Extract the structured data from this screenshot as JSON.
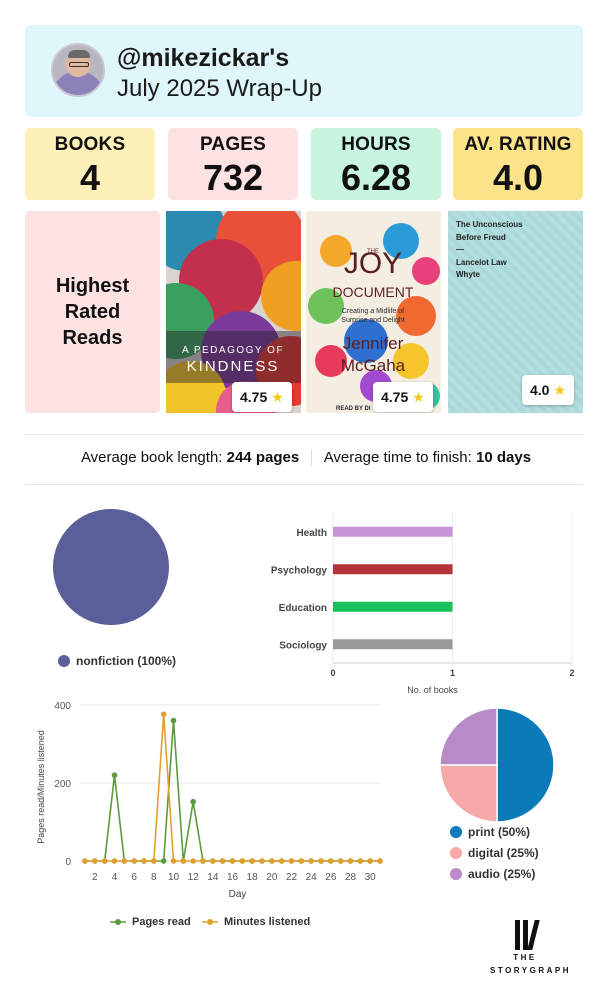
{
  "header": {
    "username": "@mikezickar's",
    "subtitle": "July 2025 Wrap-Up"
  },
  "stats": [
    {
      "label": "BOOKS",
      "value": "4",
      "color": "#fdf0b8"
    },
    {
      "label": "PAGES",
      "value": "732",
      "color": "#fde2e2"
    },
    {
      "label": "HOURS",
      "value": "6.28",
      "color": "#c8f5df"
    },
    {
      "label": "AV. RATING",
      "value": "4.0",
      "color": "#fce38a"
    }
  ],
  "highest_rated": {
    "label": "Highest Rated Reads",
    "books": [
      {
        "cover_text_line1": "A PEDAGOGY OF",
        "cover_text_line2": "KINDNESS",
        "rating": "4.75"
      },
      {
        "cover_text_line1": "THE",
        "cover_title": "JOY",
        "cover_title2": "DOCUMENT",
        "cover_tag1": "Creating a Midlife of",
        "cover_tag2": "Surprise and Delight",
        "cover_author1": "Jennifer",
        "cover_author2": "McGaha",
        "cover_footer": "READ BY DI",
        "rating": "4.75"
      },
      {
        "cover_lines": [
          "The Unconscious",
          "Before Freud",
          "—",
          "Lancelot Law",
          "Whyte"
        ],
        "rating": "4.0"
      }
    ]
  },
  "averages": {
    "length_label": "Average book length:",
    "length_value": "244 pages",
    "finish_label": "Average time to finish:",
    "finish_value": "10 days"
  },
  "chart_data": [
    {
      "type": "pie",
      "title": "",
      "categories": [
        "nonfiction (100%)"
      ],
      "values": [
        100
      ],
      "colors": [
        "#5a5e99"
      ]
    },
    {
      "type": "bar",
      "orientation": "horizontal",
      "categories": [
        "Health",
        "Psychology",
        "Education",
        "Sociology"
      ],
      "values": [
        1,
        1,
        1,
        1
      ],
      "colors": [
        "#c893d8",
        "#b5333a",
        "#19c25a",
        "#999999"
      ],
      "xlabel": "No. of books",
      "xlim": [
        0,
        2
      ],
      "xticks": [
        "0",
        "1",
        "2"
      ]
    },
    {
      "type": "line",
      "xlabel": "Day",
      "ylabel": "Pages read/Minutes listened",
      "ylim": [
        0,
        400
      ],
      "yticks": [
        "0",
        "200",
        "400"
      ],
      "xticks": [
        "2",
        "4",
        "6",
        "8",
        "10",
        "12",
        "14",
        "16",
        "18",
        "20",
        "22",
        "24",
        "26",
        "28",
        "30"
      ],
      "x": [
        1,
        2,
        3,
        4,
        5,
        6,
        7,
        8,
        9,
        10,
        11,
        12,
        13,
        14,
        15,
        16,
        17,
        18,
        19,
        20,
        21,
        22,
        23,
        24,
        25,
        26,
        27,
        28,
        29,
        30,
        31
      ],
      "series": [
        {
          "name": "Pages read",
          "color": "#5a9a3c",
          "values": [
            0,
            0,
            0,
            220,
            0,
            0,
            0,
            0,
            0,
            360,
            0,
            152,
            0,
            0,
            0,
            0,
            0,
            0,
            0,
            0,
            0,
            0,
            0,
            0,
            0,
            0,
            0,
            0,
            0,
            0,
            0
          ]
        },
        {
          "name": "Minutes listened",
          "color": "#e0a030",
          "values": [
            0,
            0,
            0,
            0,
            0,
            0,
            0,
            0,
            376,
            0,
            0,
            0,
            0,
            0,
            0,
            0,
            0,
            0,
            0,
            0,
            0,
            0,
            0,
            0,
            0,
            0,
            0,
            0,
            0,
            0,
            0
          ]
        }
      ]
    },
    {
      "type": "pie",
      "categories": [
        "print (50%)",
        "digital (25%)",
        "audio (25%)"
      ],
      "values": [
        50,
        25,
        25
      ],
      "colors": [
        "#0a7ab8",
        "#f7a8a8",
        "#b98ac8"
      ]
    }
  ],
  "logo": {
    "line1": "THE",
    "line2": "STORYGRAPH"
  }
}
